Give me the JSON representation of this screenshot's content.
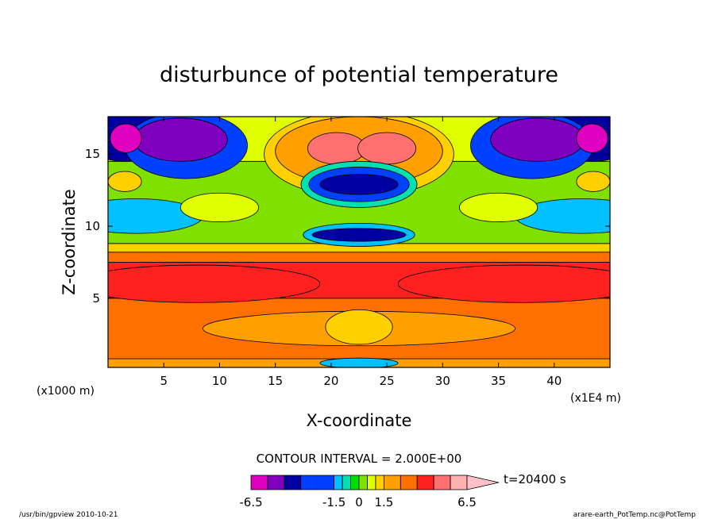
{
  "chart_data": {
    "type": "heatmap",
    "title": "disturbunce of potential temperature",
    "xlabel": "X-coordinate",
    "ylabel": "Z-coordinate",
    "x_unit_left": "(x1000 m)",
    "x_unit_right": "(x1E4 m)",
    "xlim": [
      0,
      45
    ],
    "ylim": [
      0.2,
      17.6
    ],
    "x_ticks": [
      5,
      10,
      15,
      20,
      25,
      30,
      35,
      40
    ],
    "x_tick_labels": [
      "5",
      "10",
      "15",
      "20",
      "25",
      "30",
      "35",
      "40"
    ],
    "y_ticks": [
      5,
      10,
      15
    ],
    "y_tick_labels": [
      "5",
      "10",
      "15"
    ],
    "contour_interval_text": "CONTOUR INTERVAL = 2.000E+00",
    "time_label": "t=20400 s",
    "colorbar": {
      "levels": [
        -6.5,
        -5.5,
        -4.5,
        -3.5,
        -1.5,
        -1.0,
        -0.5,
        0,
        0.5,
        1.0,
        1.5,
        2.5,
        3.5,
        4.5,
        5.5,
        6.5
      ],
      "colors": [
        "#e000c0",
        "#8000c0",
        "#0000a0",
        "#0040ff",
        "#00c0ff",
        "#00e0b0",
        "#00e000",
        "#80e000",
        "#e0ff00",
        "#ffd000",
        "#ffa000",
        "#ff7000",
        "#ff2020",
        "#ff7070",
        "#ffb0b0"
      ],
      "tick_labels": [
        "-6.5",
        "-1.5",
        "0",
        "1.5",
        "6.5"
      ]
    },
    "features": [
      {
        "x": 1.5,
        "z": 16.1,
        "value": -6.5
      },
      {
        "x": 7.0,
        "z": 15.5,
        "value": -4.5
      },
      {
        "x": 43.5,
        "z": 16.1,
        "value": -6.5
      },
      {
        "x": 38.0,
        "z": 15.5,
        "value": -4.5
      },
      {
        "x": 20.5,
        "z": 15.4,
        "value": 5.0
      },
      {
        "x": 25.0,
        "z": 15.4,
        "value": 5.0
      },
      {
        "x": 22.5,
        "z": 12.8,
        "value": -4.0
      },
      {
        "x": 22.5,
        "z": 9.4,
        "value": -3.5
      },
      {
        "x": 8.0,
        "z": 6.0,
        "value": 4.0
      },
      {
        "x": 37.0,
        "z": 6.0,
        "value": 4.0
      },
      {
        "x": 22.5,
        "z": 3.0,
        "value": 2.5
      }
    ],
    "grid": false
  },
  "footer": {
    "left": "/usr/bin/gpview   2010-10-21",
    "right": "arare-earth_PotTemp.nc@PotTemp"
  }
}
